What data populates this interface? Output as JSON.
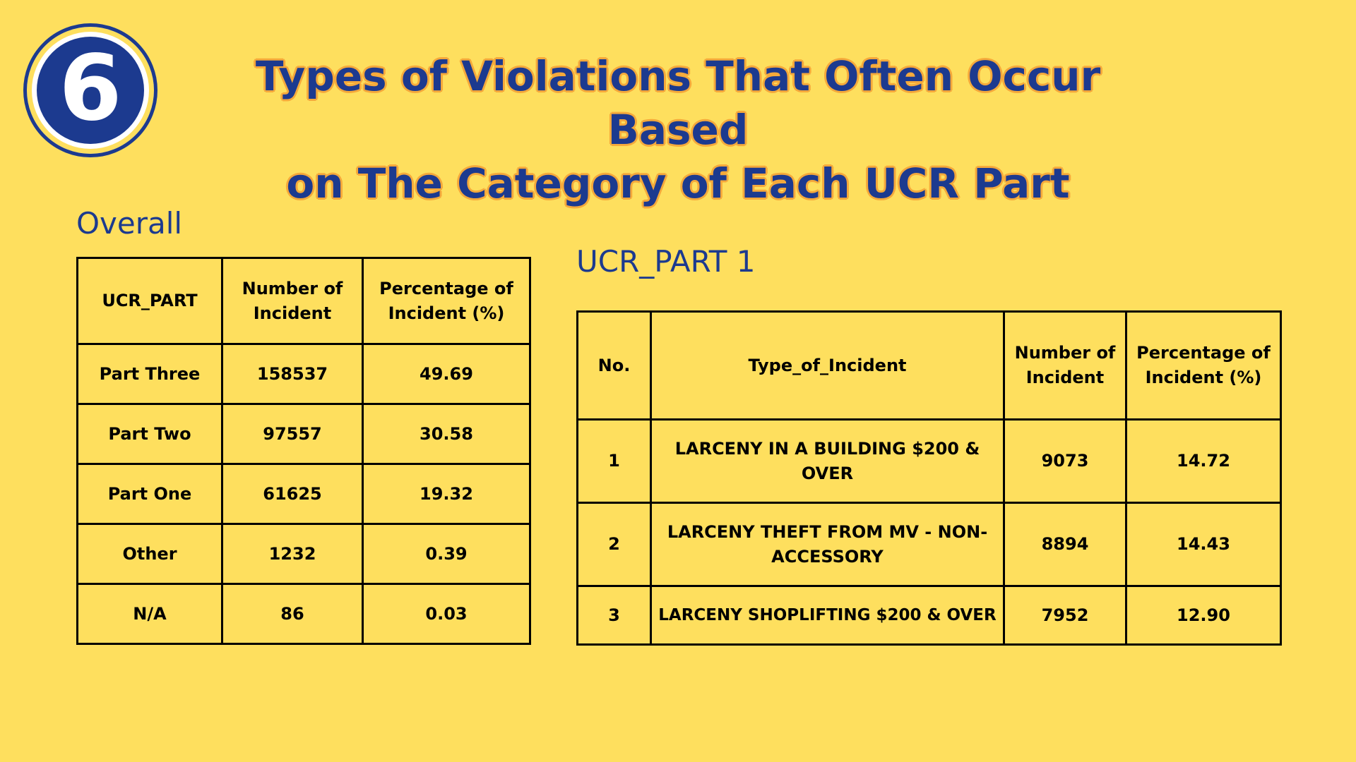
{
  "badge": {
    "number": "6"
  },
  "title": {
    "line1": "Types of Violations That Often Occur Based",
    "line2": "on The Category of Each UCR Part"
  },
  "overall": {
    "label": "Overall",
    "headers": [
      "UCR_PART",
      "Number of Incident",
      "Percentage of Incident (%)"
    ],
    "rows": [
      [
        "Part Three",
        "158537",
        "49.69"
      ],
      [
        "Part Two",
        "97557",
        "30.58"
      ],
      [
        "Part One",
        "61625",
        "19.32"
      ],
      [
        "Other",
        "1232",
        "0.39"
      ],
      [
        "N/A",
        "86",
        "0.03"
      ]
    ]
  },
  "part1": {
    "label": "UCR_PART 1",
    "headers": [
      "No.",
      "Type_of_Incident",
      "Number of Incident",
      "Percentage of Incident (%)"
    ],
    "rows": [
      [
        "1",
        "LARCENY IN A BUILDING $200 & OVER",
        "9073",
        "14.72"
      ],
      [
        "2",
        "LARCENY THEFT FROM MV - NON-ACCESSORY",
        "8894",
        "14.43"
      ],
      [
        "3",
        "LARCENY SHOPLIFTING $200 & OVER",
        "7952",
        "12.90"
      ]
    ]
  },
  "colors": {
    "background": "#fedf5e",
    "navy": "#1c3a8f",
    "title_outline": "#f5a93b"
  }
}
